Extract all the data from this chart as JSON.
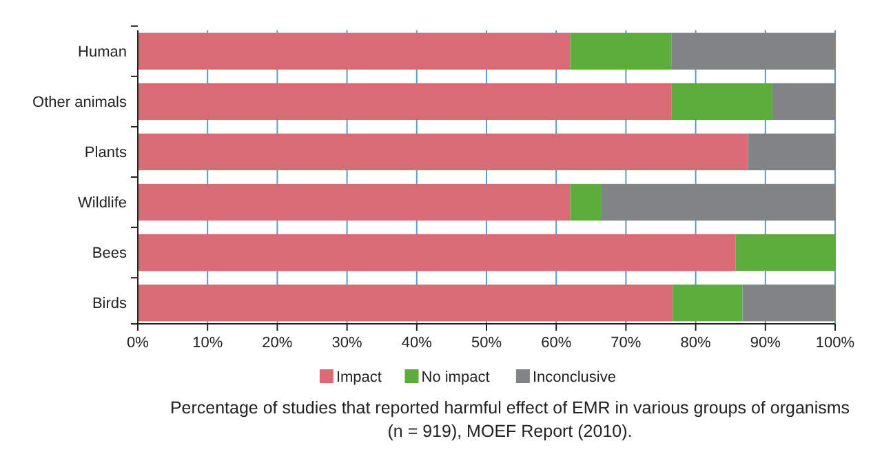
{
  "chart_data": {
    "type": "bar",
    "orientation": "horizontal",
    "stacked": true,
    "categories": [
      "Human",
      "Other animals",
      "Plants",
      "Wildlife",
      "Bees",
      "Birds"
    ],
    "series": [
      {
        "name": "Impact",
        "color": "#d96b75",
        "values": [
          62,
          76.5,
          87.5,
          62,
          85.7,
          76.7
        ]
      },
      {
        "name": "No impact",
        "color": "#5dad3d",
        "values": [
          14.5,
          14.5,
          0,
          4.5,
          14.3,
          10
        ]
      },
      {
        "name": "Inconclusive",
        "color": "#808484",
        "values": [
          23.5,
          9,
          12.5,
          33.5,
          0,
          13.3
        ]
      }
    ],
    "xlim": [
      0,
      100
    ],
    "xticks": [
      {
        "value": 0,
        "label": "0%"
      },
      {
        "value": 10,
        "label": "10%"
      },
      {
        "value": 20,
        "label": "20%"
      },
      {
        "value": 30,
        "label": "30%"
      },
      {
        "value": 40,
        "label": "40%"
      },
      {
        "value": 50,
        "label": "50%"
      },
      {
        "value": 60,
        "label": "60%"
      },
      {
        "value": 70,
        "label": "70%"
      },
      {
        "value": 80,
        "label": "80%"
      },
      {
        "value": 90,
        "label": "90%"
      },
      {
        "value": 100,
        "label": "100%"
      }
    ],
    "grid": "x",
    "legend": "bottom",
    "annotations": [
      "Percentage of studies that reported harmful effect of EMR in various groups of organisms (n = 919), MOEF Report (2010)."
    ]
  }
}
